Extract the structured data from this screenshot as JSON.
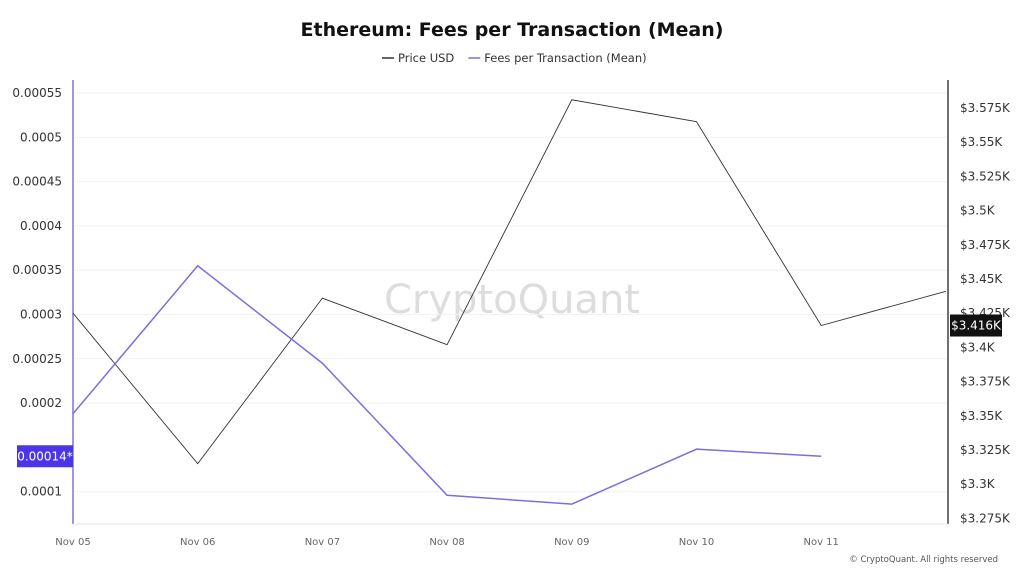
{
  "chart_data": {
    "type": "line",
    "title": "Ethereum: Fees per Transaction (Mean)",
    "categories": [
      "Nov 05",
      "Nov 06",
      "Nov 07",
      "Nov 08",
      "Nov 09",
      "Nov 10",
      "Nov 11"
    ],
    "series": [
      {
        "name": "Price USD",
        "axis": "right",
        "color": "#333333",
        "x": [
          "Nov 05",
          "Nov 06",
          "Nov 07",
          "Nov 08",
          "Nov 09",
          "Nov 10",
          "Nov 11",
          "Nov 12"
        ],
        "values": [
          3425,
          3315,
          3436,
          3402,
          3581,
          3565,
          3416,
          3441
        ]
      },
      {
        "name": "Fees per Transaction (Mean)",
        "axis": "left",
        "color": "#7b6fe0",
        "x": [
          "Nov 05",
          "Nov 06",
          "Nov 07",
          "Nov 08",
          "Nov 09",
          "Nov 10",
          "Nov 11"
        ],
        "values": [
          0.000188,
          0.000355,
          0.000245,
          9.6e-05,
          8.6e-05,
          0.000148,
          0.00014
        ]
      }
    ],
    "y_left": {
      "ticks": [
        "0.00055",
        "0.0005",
        "0.00045",
        "0.0004",
        "0.00035",
        "0.0003",
        "0.00025",
        "0.0002",
        "0.0001"
      ],
      "tick_values": [
        0.00055,
        0.0005,
        0.00045,
        0.0004,
        0.00035,
        0.0003,
        0.00025,
        0.0002,
        0.0001
      ],
      "current_label": "0.00014*",
      "current_value": 0.00014,
      "label_color": "#4a35e8"
    },
    "y_right": {
      "ticks": [
        "$3.575K",
        "$3.55K",
        "$3.525K",
        "$3.5K",
        "$3.475K",
        "$3.45K",
        "$3.425K",
        "$3.4K",
        "$3.375K",
        "$3.35K",
        "$3.325K",
        "$3.3K",
        "$3.275K"
      ],
      "tick_values": [
        3575,
        3550,
        3525,
        3500,
        3475,
        3450,
        3425,
        3400,
        3375,
        3350,
        3325,
        3300,
        3275
      ],
      "current_label": "$3.416K",
      "current_value": 3416,
      "label_color": "#111111"
    },
    "grid": true,
    "legend": "top-center",
    "watermark": "CryptoQuant",
    "credit": "© CryptoQuant. All rights reserved"
  }
}
